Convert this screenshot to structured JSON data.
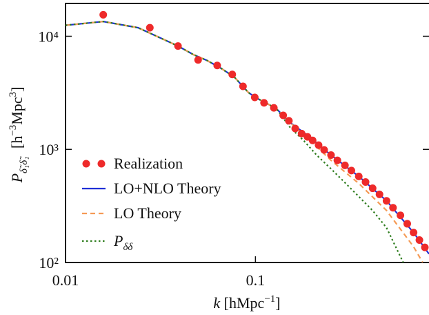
{
  "chart_data": {
    "type": "line",
    "xlabel": [
      "k",
      "[hMpc",
      "−1",
      "]"
    ],
    "ylabel": [
      "P",
      "δ̃₁δ̃₁",
      "[h",
      "−3",
      "Mpc",
      "3",
      "]"
    ],
    "xscale": "log",
    "yscale": "log",
    "xlim": [
      0.01,
      0.82
    ],
    "ylim": [
      100,
      19500
    ],
    "xticks": [
      0.01,
      0.1
    ],
    "yticks": [
      {
        "value": 100,
        "label": "10²"
      },
      {
        "value": 1000,
        "label": "10³"
      },
      {
        "value": 10000,
        "label": "10⁴"
      }
    ],
    "legend": "lower left",
    "series": [
      {
        "name": "Realization",
        "kind": "scatter",
        "color": "#ee2a2a",
        "x": [
          0.0158,
          0.0278,
          0.0391,
          0.0499,
          0.0629,
          0.0755,
          0.086,
          0.0992,
          0.111,
          0.125,
          0.14,
          0.15,
          0.162,
          0.175,
          0.188,
          0.2,
          0.215,
          0.23,
          0.25,
          0.27,
          0.296,
          0.32,
          0.35,
          0.38,
          0.414,
          0.45,
          0.49,
          0.53,
          0.58,
          0.63,
          0.68,
          0.73,
          0.78
        ],
        "values": [
          15500,
          11900,
          8200,
          6180,
          5520,
          4600,
          3610,
          2880,
          2580,
          2330,
          2000,
          1790,
          1530,
          1380,
          1290,
          1200,
          1090,
          990,
          890,
          800,
          722,
          650,
          577,
          515,
          453,
          400,
          351,
          305,
          261,
          220,
          184,
          158,
          136
        ]
      },
      {
        "name": "LO+NLO Theory",
        "kind": "line",
        "style": "solid",
        "color": "#1f2fd6",
        "x": [
          0.01,
          0.0158,
          0.0241,
          0.0391,
          0.047,
          0.0557,
          0.0658,
          0.0775,
          0.0917,
          0.1,
          0.1286,
          0.152,
          0.195,
          0.25,
          0.35,
          0.49,
          0.68,
          0.82
        ],
        "values": [
          12500,
          13500,
          11900,
          8200,
          6900,
          6100,
          5220,
          4350,
          3190,
          2880,
          2300,
          1730,
          1270,
          890,
          577,
          351,
          184,
          119
        ]
      },
      {
        "name": "LO Theory",
        "kind": "line",
        "style": "dashed",
        "color": "#f59a55",
        "x": [
          0.01,
          0.0158,
          0.0241,
          0.0391,
          0.047,
          0.0557,
          0.0658,
          0.0775,
          0.0917,
          0.1,
          0.1286,
          0.152,
          0.195,
          0.25,
          0.35,
          0.49,
          0.68,
          0.76
        ],
        "values": [
          12500,
          13500,
          11900,
          8200,
          6900,
          6100,
          5220,
          4350,
          3190,
          2880,
          2300,
          1730,
          1190,
          800,
          500,
          288,
          138,
          100
        ]
      },
      {
        "name": "Pδδ",
        "kind": "line",
        "style": "dotted",
        "color": "#2e7d1e",
        "x": [
          0.01,
          0.0158,
          0.0241,
          0.0391,
          0.047,
          0.0557,
          0.0658,
          0.0775,
          0.0917,
          0.1,
          0.1286,
          0.152,
          0.18,
          0.21,
          0.25,
          0.296,
          0.35,
          0.414,
          0.49,
          0.6
        ],
        "values": [
          12500,
          13500,
          11900,
          8200,
          6900,
          6100,
          5220,
          4350,
          3190,
          2880,
          2300,
          1570,
          1190,
          890,
          673,
          508,
          383,
          288,
          203,
          100
        ]
      }
    ]
  }
}
